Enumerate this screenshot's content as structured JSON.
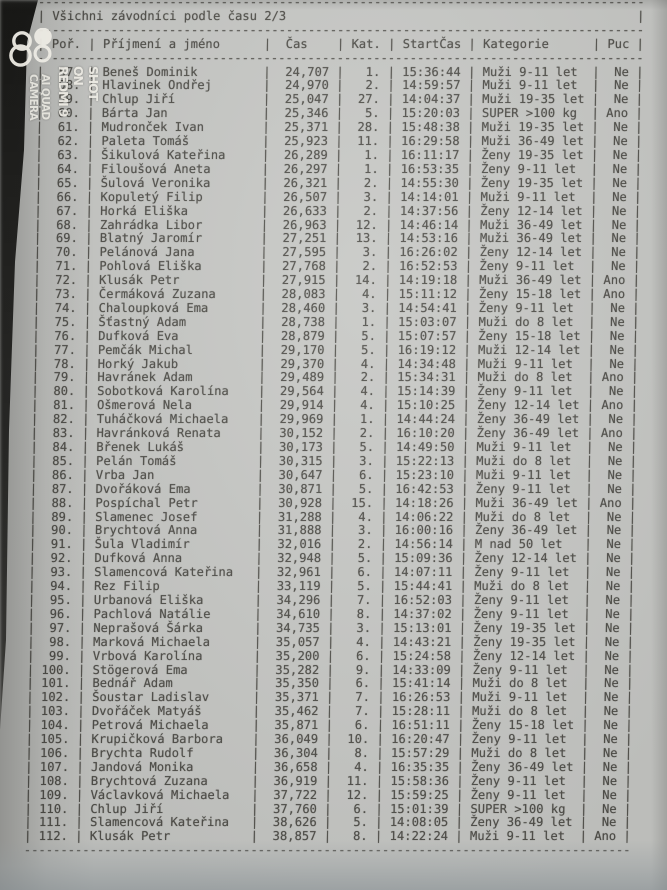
{
  "colors": {
    "paper": "#c6c7c4",
    "ink": "#504f4a",
    "table_surface": "#2a2a28",
    "watermark": "#edebe4"
  },
  "watermark": {
    "logo": "redmi-ai-camera-logo",
    "line1": "SHOT ON REDMI 9",
    "line2": "AI QUAD CAMERA"
  },
  "document": {
    "title": "Všichni závodníci podle času 2/3",
    "columns": [
      "Poř.",
      "Příjmení a jméno",
      "Čas",
      "Kat.",
      "StartČas",
      "Kategorie",
      "Puc"
    ],
    "rows": [
      [
        "57.",
        "Beneš Dominik",
        "24,707",
        "1.",
        "15:36:44",
        "Muži 9-11 let",
        "Ne"
      ],
      [
        "58.",
        "Hlavinek Ondřej",
        "24,970",
        "2.",
        "14:59:57",
        "Muži 9-11 let",
        "Ne"
      ],
      [
        "59.",
        "Chlup Jiří",
        "25,047",
        "27.",
        "14:04:37",
        "Muži 19-35 let",
        "Ne"
      ],
      [
        "60.",
        "Bárta Jan",
        "25,346",
        "5.",
        "15:20:03",
        "SUPER >100 kg",
        "Ano"
      ],
      [
        "61.",
        "Mudronček Ivan",
        "25,371",
        "28.",
        "15:48:38",
        "Muži 19-35 let",
        "Ne"
      ],
      [
        "62.",
        "Paleta Tomáš",
        "25,923",
        "11.",
        "16:29:58",
        "Muži 36-49 let",
        "Ne"
      ],
      [
        "63.",
        "Šikulová Kateřina",
        "26,289",
        "1.",
        "16:11:17",
        "Ženy 19-35 let",
        "Ne"
      ],
      [
        "64.",
        "Filoušová Aneta",
        "26,297",
        "1.",
        "16:53:35",
        "Ženy 9-11 let",
        "Ne"
      ],
      [
        "65.",
        "Šulová Veronika",
        "26,321",
        "2.",
        "14:55:30",
        "Ženy 19-35 let",
        "Ne"
      ],
      [
        "66.",
        "Kopuletý Filip",
        "26,507",
        "3.",
        "14:14:01",
        "Muži 9-11 let",
        "Ne"
      ],
      [
        "67.",
        "Horká Eliška",
        "26,633",
        "2.",
        "14:37:56",
        "Ženy 12-14 let",
        "Ne"
      ],
      [
        "68.",
        "Zahrádka Libor",
        "26,963",
        "12.",
        "14:46:14",
        "Muži 36-49 let",
        "Ne"
      ],
      [
        "69.",
        "Blatný Jaromír",
        "27,251",
        "13.",
        "14:53:16",
        "Muži 36-49 let",
        "Ne"
      ],
      [
        "70.",
        "Pelánová Jana",
        "27,595",
        "3.",
        "16:26:02",
        "Ženy 12-14 let",
        "Ne"
      ],
      [
        "71.",
        "Pohlová Eliška",
        "27,768",
        "2.",
        "16:52:53",
        "Ženy 9-11 let",
        "Ne"
      ],
      [
        "72.",
        "Klusák Petr",
        "27,915",
        "14.",
        "14:19:18",
        "Muži 36-49 let",
        "Ano"
      ],
      [
        "73.",
        "Čermáková Zuzana",
        "28,083",
        "4.",
        "15:11:12",
        "Ženy 15-18 let",
        "Ano"
      ],
      [
        "74.",
        "Chaloupková Ema",
        "28,460",
        "3.",
        "14:54:41",
        "Ženy 9-11 let",
        "Ne"
      ],
      [
        "75.",
        "Šťastný Adam",
        "28,738",
        "1.",
        "15:03:07",
        "Muži do 8 let",
        "Ne"
      ],
      [
        "76.",
        "Dufková Eva",
        "28,879",
        "5.",
        "15:07:57",
        "Ženy 15-18 let",
        "Ne"
      ],
      [
        "77.",
        "Pemčák Michal",
        "29,170",
        "5.",
        "16:19:12",
        "Muži 12-14 let",
        "Ne"
      ],
      [
        "78.",
        "Horký Jakub",
        "29,370",
        "4.",
        "14:34:48",
        "Muži 9-11 let",
        "Ne"
      ],
      [
        "79.",
        "Havránek Adam",
        "29,489",
        "2.",
        "15:34:31",
        "Muži do 8 let",
        "Ano"
      ],
      [
        "80.",
        "Sobotková Karolína",
        "29,564",
        "4.",
        "15:14:39",
        "Ženy 9-11 let",
        "Ne"
      ],
      [
        "81.",
        "Ošmerová Nela",
        "29,914",
        "4.",
        "15:10:25",
        "Ženy 12-14 let",
        "Ano"
      ],
      [
        "82.",
        "Tuháčková Michaela",
        "29,969",
        "1.",
        "14:44:24",
        "Ženy 36-49 let",
        "Ne"
      ],
      [
        "83.",
        "Havránková Renata",
        "30,152",
        "2.",
        "16:10:20",
        "Ženy 36-49 let",
        "Ano"
      ],
      [
        "84.",
        "Břenek Lukáš",
        "30,173",
        "5.",
        "14:49:50",
        "Muži 9-11 let",
        "Ne"
      ],
      [
        "85.",
        "Pelán Tomáš",
        "30,315",
        "3.",
        "15:22:13",
        "Muži do 8 let",
        "Ne"
      ],
      [
        "86.",
        "Vrba Jan",
        "30,647",
        "6.",
        "15:23:10",
        "Muži 9-11 let",
        "Ne"
      ],
      [
        "87.",
        "Dvořáková Ema",
        "30,871",
        "5.",
        "16:42:53",
        "Ženy 9-11 let",
        "Ne"
      ],
      [
        "88.",
        "Pospíchal Petr",
        "30,928",
        "15.",
        "14:18:26",
        "Muži 36-49 let",
        "Ano"
      ],
      [
        "89.",
        "Slamenec Josef",
        "31,288",
        "4.",
        "14:06:22",
        "Muži do 8 let",
        "Ne"
      ],
      [
        "90.",
        "Brychtová Anna",
        "31,888",
        "3.",
        "16:00:16",
        "Ženy 36-49 let",
        "Ne"
      ],
      [
        "91.",
        "Šula Vladimír",
        "32,016",
        "2.",
        "14:56:14",
        "M nad 50 let",
        "Ne"
      ],
      [
        "92.",
        "Dufková Anna",
        "32,948",
        "5.",
        "15:09:36",
        "Ženy 12-14 let",
        "Ne"
      ],
      [
        "93.",
        "Slamencová Kateřina",
        "32,961",
        "6.",
        "14:07:11",
        "Ženy 9-11 let",
        "Ne"
      ],
      [
        "94.",
        "Rez Filip",
        "33,119",
        "5.",
        "15:44:41",
        "Muži do 8 let",
        "Ne"
      ],
      [
        "95.",
        "Urbanová Eliška",
        "34,296",
        "7.",
        "16:52:03",
        "Ženy 9-11 let",
        "Ne"
      ],
      [
        "96.",
        "Pachlová Natálie",
        "34,610",
        "8.",
        "14:37:02",
        "Ženy 9-11 let",
        "Ne"
      ],
      [
        "97.",
        "Neprašová Šárka",
        "34,735",
        "3.",
        "15:13:01",
        "Ženy 19-35 let",
        "Ne"
      ],
      [
        "98.",
        "Marková Michaela",
        "35,057",
        "4.",
        "14:43:21",
        "Ženy 19-35 let",
        "Ne"
      ],
      [
        "99.",
        "Vrbová Karolína",
        "35,200",
        "6.",
        "15:24:58",
        "Ženy 12-14 let",
        "Ne"
      ],
      [
        "100.",
        "Stögerová Ema",
        "35,282",
        "9.",
        "14:33:09",
        "Ženy 9-11 let",
        "Ne"
      ],
      [
        "101.",
        "Bednář Adam",
        "35,350",
        "6.",
        "15:41:14",
        "Muži do 8 let",
        "Ne"
      ],
      [
        "102.",
        "Šoustar Ladislav",
        "35,371",
        "7.",
        "16:26:53",
        "Muži 9-11 let",
        "Ne"
      ],
      [
        "103.",
        "Dvořáček Matyáš",
        "35,462",
        "7.",
        "15:28:11",
        "Muži do 8 let",
        "Ne"
      ],
      [
        "104.",
        "Petrová Michaela",
        "35,871",
        "6.",
        "16:51:11",
        "Ženy 15-18 let",
        "Ne"
      ],
      [
        "105.",
        "Krupičková Barbora",
        "36,049",
        "10.",
        "16:20:47",
        "Ženy 9-11 let",
        "Ne"
      ],
      [
        "106.",
        "Brychta Rudolf",
        "36,304",
        "8.",
        "15:57:29",
        "Muži do 8 let",
        "Ne"
      ],
      [
        "107.",
        "Jandová Monika",
        "36,658",
        "4.",
        "16:35:35",
        "Ženy 36-49 let",
        "Ne"
      ],
      [
        "108.",
        "Brychtová Zuzana",
        "36,919",
        "11.",
        "15:58:36",
        "Ženy 9-11 let",
        "Ne"
      ],
      [
        "109.",
        "Václavková Michaela",
        "37,722",
        "12.",
        "15:59:25",
        "Ženy 9-11 let",
        "Ne"
      ],
      [
        "110.",
        "Chlup Jiří",
        "37,760",
        "6.",
        "15:01:39",
        "SUPER >100 kg",
        "Ne"
      ],
      [
        "111.",
        "Slamencová Kateřina",
        "38,626",
        "5.",
        "14:08:05",
        "Ženy 36-49 let",
        "Ne"
      ],
      [
        "112.",
        "Klusák Petr",
        "38,857",
        "8.",
        "14:22:24",
        "Muži 9-11 let",
        "Ano"
      ]
    ]
  }
}
